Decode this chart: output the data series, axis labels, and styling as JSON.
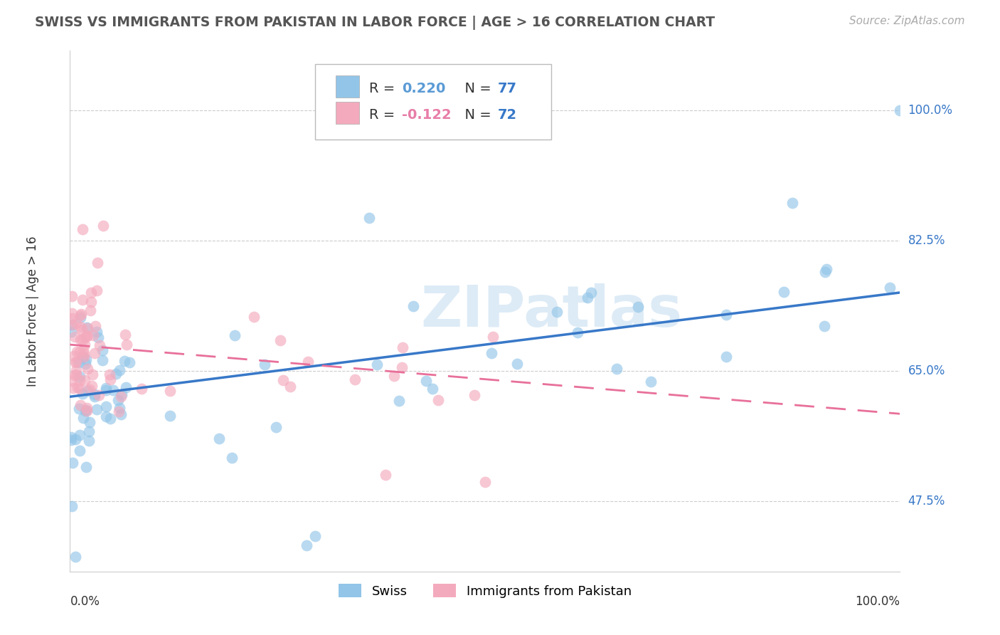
{
  "title": "SWISS VS IMMIGRANTS FROM PAKISTAN IN LABOR FORCE | AGE > 16 CORRELATION CHART",
  "source": "Source: ZipAtlas.com",
  "ylabel": "In Labor Force | Age > 16",
  "ytick_labels": [
    "47.5%",
    "65.0%",
    "82.5%",
    "100.0%"
  ],
  "ytick_values": [
    0.475,
    0.65,
    0.825,
    1.0
  ],
  "xrange": [
    0.0,
    1.0
  ],
  "yrange": [
    0.38,
    1.08
  ],
  "watermark": "ZIPatlas",
  "swiss_color": "#92C5E8",
  "pak_color": "#F4AABD",
  "swiss_line_color": "#3878C8",
  "pak_line_color": "#E8709A",
  "swiss_trend_x0": 0.0,
  "swiss_trend_y0": 0.615,
  "swiss_trend_x1": 1.0,
  "swiss_trend_y1": 0.755,
  "pak_trend_x0": 0.0,
  "pak_trend_y0": 0.685,
  "pak_trend_x1": 1.0,
  "pak_trend_y1": 0.592,
  "background_color": "#FFFFFF",
  "grid_color": "#CCCCCC",
  "legend_R_swiss_color": "#5B9BD5",
  "legend_R_pak_color": "#E87DA8",
  "legend_N_color": "#3878C8"
}
